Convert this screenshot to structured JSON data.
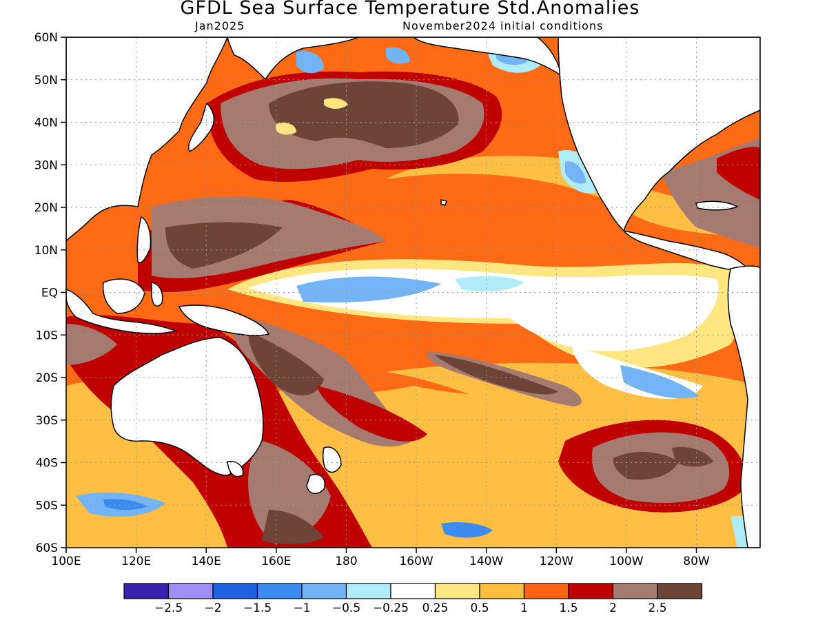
{
  "title": "GFDL Sea Surface Temperature Std.Anomalies",
  "subtitle_left": "Jan2025",
  "subtitle_right": "November2024 initial conditions",
  "lat_ticks": [
    "60N",
    "50N",
    "40N",
    "30N",
    "20N",
    "10N",
    "EQ",
    "10S",
    "20S",
    "30S",
    "40S",
    "50S",
    "60S"
  ],
  "lon_ticks": [
    "100E",
    "120E",
    "140E",
    "160E",
    "180",
    "160W",
    "140W",
    "120W",
    "100W",
    "80W"
  ],
  "colorbar": {
    "labels": [
      "-2.5",
      "-2",
      "-1.5",
      "-1",
      "-0.5",
      "-0.25",
      "0.25",
      "0.5",
      "1",
      "1.5",
      "2",
      "2.5"
    ],
    "colors": [
      "#3a22b0",
      "#9f8ff5",
      "#1f62e0",
      "#3c8cf0",
      "#72b4f6",
      "#b0ecf8",
      "#ffffff",
      "#ffe680",
      "#ffbe3e",
      "#ff6210",
      "#c00000",
      "#a57a70",
      "#6e4438"
    ]
  }
}
